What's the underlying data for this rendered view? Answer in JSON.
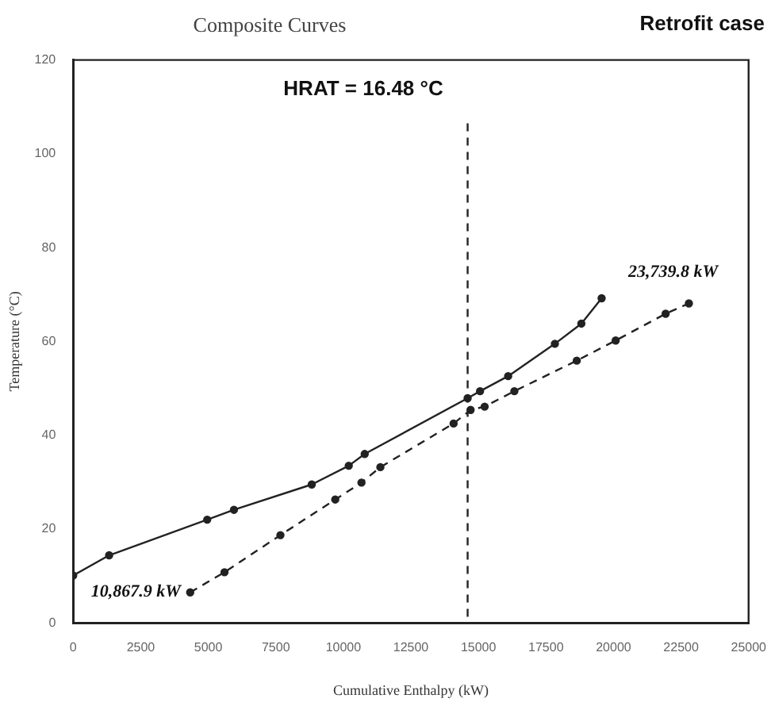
{
  "chart_data": {
    "type": "line",
    "title": "Composite Curves",
    "subtitle": "Retrofit case",
    "xlabel": "Cumulative Enthalpy (kW)",
    "ylabel": "Temperature (°C)",
    "xlim": [
      0,
      25000
    ],
    "xticks": [
      0,
      2500,
      5000,
      7500,
      10000,
      12500,
      15000,
      17500,
      20000,
      22500,
      25000
    ],
    "ylim": [
      0,
      120
    ],
    "yticks": [
      0,
      20,
      40,
      60,
      80,
      100,
      120
    ],
    "grid": false,
    "legend": false,
    "marker": "circle",
    "series": [
      {
        "color": "#222222",
        "line_style": "solid",
        "x": [
          0,
          1330,
          4960,
          5950,
          8830,
          10200,
          10790,
          14600,
          15060,
          16100,
          17830,
          18810,
          19560
        ],
        "values": [
          10.1,
          14.4,
          22.0,
          24.1,
          29.5,
          33.5,
          36.0,
          47.9,
          49.4,
          52.6,
          59.5,
          63.8,
          69.2
        ]
      },
      {
        "color": "#222222",
        "line_style": "dashed",
        "x": [
          4330,
          5600,
          7670,
          9700,
          10670,
          11370,
          14080,
          14710,
          15230,
          16330,
          18640,
          20080,
          21930,
          22790
        ],
        "values": [
          6.5,
          10.8,
          18.7,
          26.3,
          29.9,
          33.2,
          42.5,
          45.4,
          46.1,
          49.4,
          55.9,
          60.2,
          65.9,
          68.1
        ]
      }
    ],
    "ref_lines": [
      {
        "axis": "x",
        "value": 14600,
        "color": "#222222",
        "line_style": "dashed"
      }
    ],
    "annotations": [
      "HRAT = 16.48 °C",
      {
        "text": "10,867.9 kW",
        "x": 4330,
        "y": 6.5
      },
      {
        "text": "23,739.8 kW",
        "x": 22790,
        "y": 68.1
      }
    ]
  }
}
